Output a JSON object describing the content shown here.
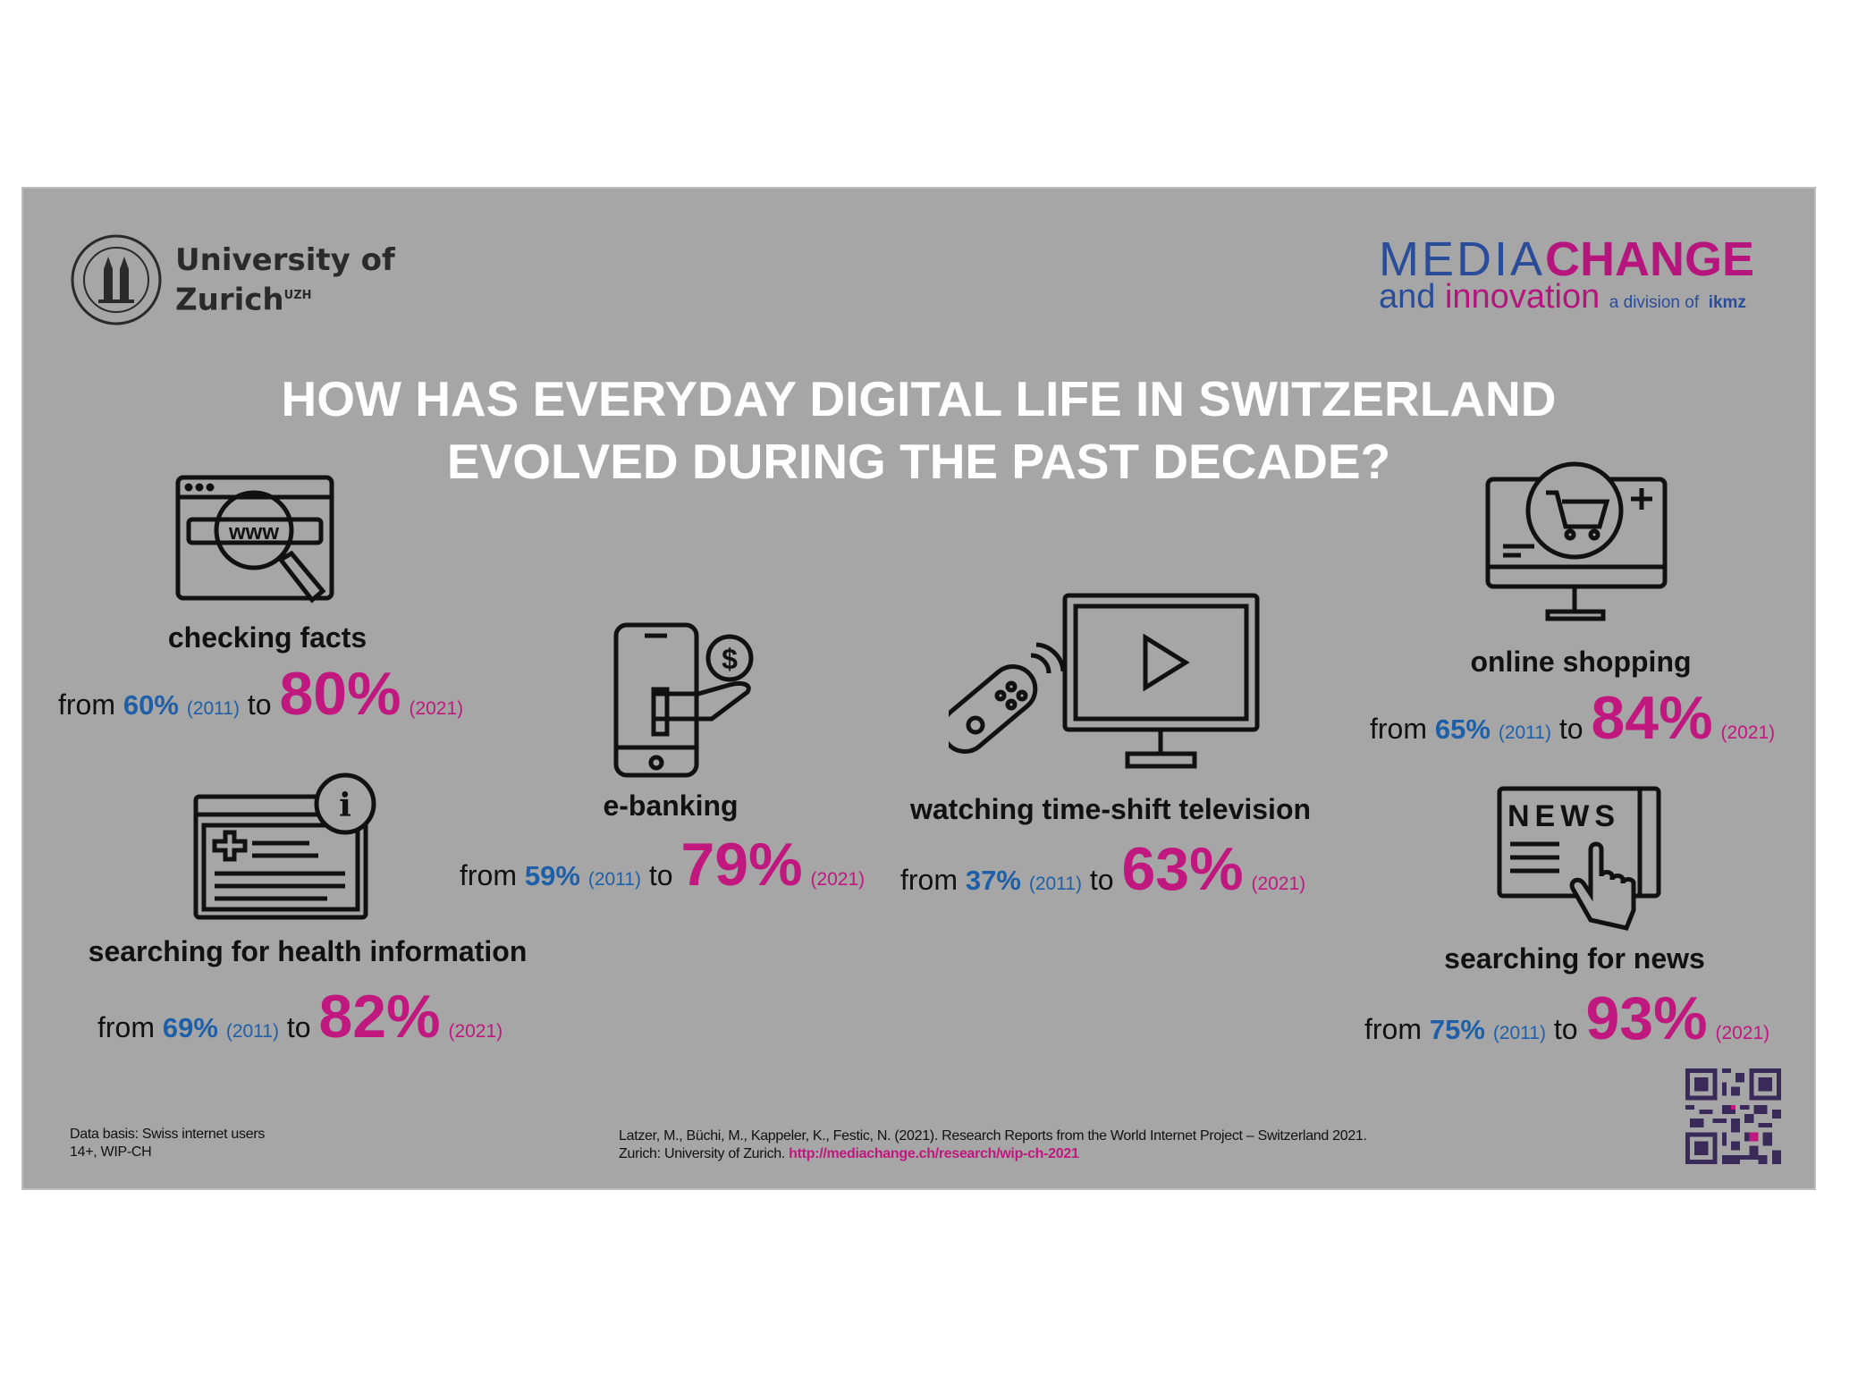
{
  "logos": {
    "uzh_line1": "University of",
    "uzh_line2": "Zurich",
    "uzh_sup": "UZH",
    "mc_media": "MEDIA",
    "mc_change": "CHANGE",
    "mc_and": "and",
    "mc_innovation": "innovation",
    "mc_division": "a division of",
    "mc_ikmz": "ikmz"
  },
  "title": {
    "line1": "HOW HAS EVERYDAY DIGITAL LIFE IN SWITZERLAND",
    "line2": "EVOLVED DURING THE PAST DECADE?"
  },
  "items": [
    {
      "label": "checking facts",
      "from": "from",
      "v2011": "60%",
      "y2011": "(2011)",
      "to": "to",
      "v2021": "80%",
      "y2021": "(2021)",
      "icon_text": "www"
    },
    {
      "label": "searching for health information",
      "from": "from",
      "v2011": "69%",
      "y2011": "(2011)",
      "to": "to",
      "v2021": "82%",
      "y2021": "(2021)"
    },
    {
      "label": "e-banking",
      "from": "from",
      "v2011": "59%",
      "y2011": "(2011)",
      "to": "to",
      "v2021": "79%",
      "y2021": "(2021)"
    },
    {
      "label": "watching time-shift television",
      "from": "from",
      "v2011": "37%",
      "y2011": "(2011)",
      "to": "to",
      "v2021": "63%",
      "y2021": "(2021)"
    },
    {
      "label": "online shopping",
      "from": "from",
      "v2011": "65%",
      "y2011": "(2011)",
      "to": "to",
      "v2021": "84%",
      "y2021": "(2021)"
    },
    {
      "label": "searching for news",
      "from": "from",
      "v2011": "75%",
      "y2011": "(2011)",
      "to": "to",
      "v2021": "93%",
      "y2021": "(2021)",
      "icon_text": "NEWS"
    }
  ],
  "footer": {
    "basis_line1": "Data basis: Swiss internet users",
    "basis_line2": "14+, WIP-CH",
    "citation_line1": "Latzer, M., Büchi, M., Kappeler, K., Festic, N. (2021). Research Reports from the World Internet Project – Switzerland 2021.",
    "citation_line2": "Zurich: University of Zurich.",
    "link": "http://mediachange.ch/research/wip-ch-2021"
  },
  "colors": {
    "background": "#a6a6a6",
    "blue": "#1f5fa8",
    "magenta": "#c0187f"
  }
}
